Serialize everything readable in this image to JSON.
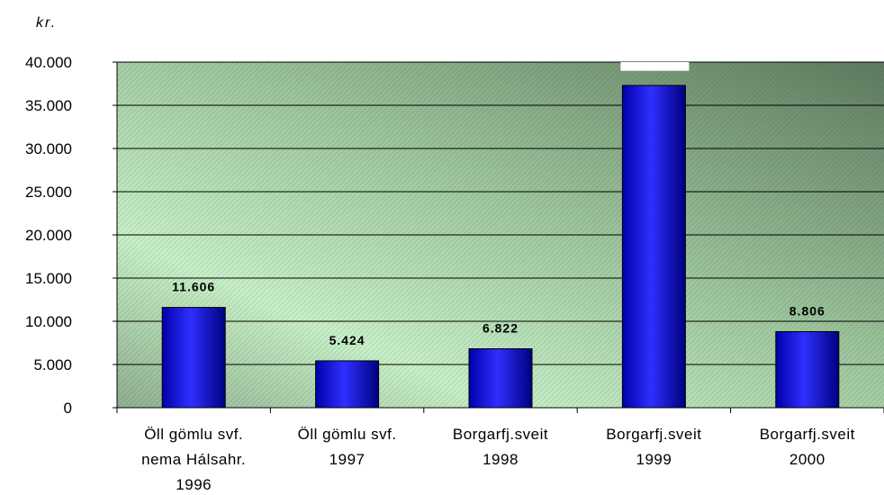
{
  "chart_data": {
    "type": "bar",
    "unit_label": "kr.",
    "categories": [
      [
        "Öll gömlu svf.",
        "nema Hálsahr.",
        "1996"
      ],
      [
        "Öll gömlu svf.",
        "1997"
      ],
      [
        "Borgarfj.sveit",
        "1998"
      ],
      [
        "Borgarfj.sveit",
        "1999"
      ],
      [
        "Borgarfj.sveit",
        "2000"
      ]
    ],
    "values": [
      11606,
      5424,
      6822,
      37300,
      8806
    ],
    "data_labels": [
      "11.606",
      "5.424",
      "6.822",
      "",
      "8.806"
    ],
    "yticks": [
      "0",
      "5.000",
      "10.000",
      "15.000",
      "20.000",
      "25.000",
      "30.000",
      "35.000",
      "40.000"
    ],
    "ylim": [
      0,
      40000
    ],
    "grid": true,
    "legend": "none",
    "colors": {
      "bar_light": "#3a3aff",
      "bar_dark": "#000080",
      "plot_light": "#ccffcc",
      "plot_dark": "#4d6b4d"
    }
  }
}
